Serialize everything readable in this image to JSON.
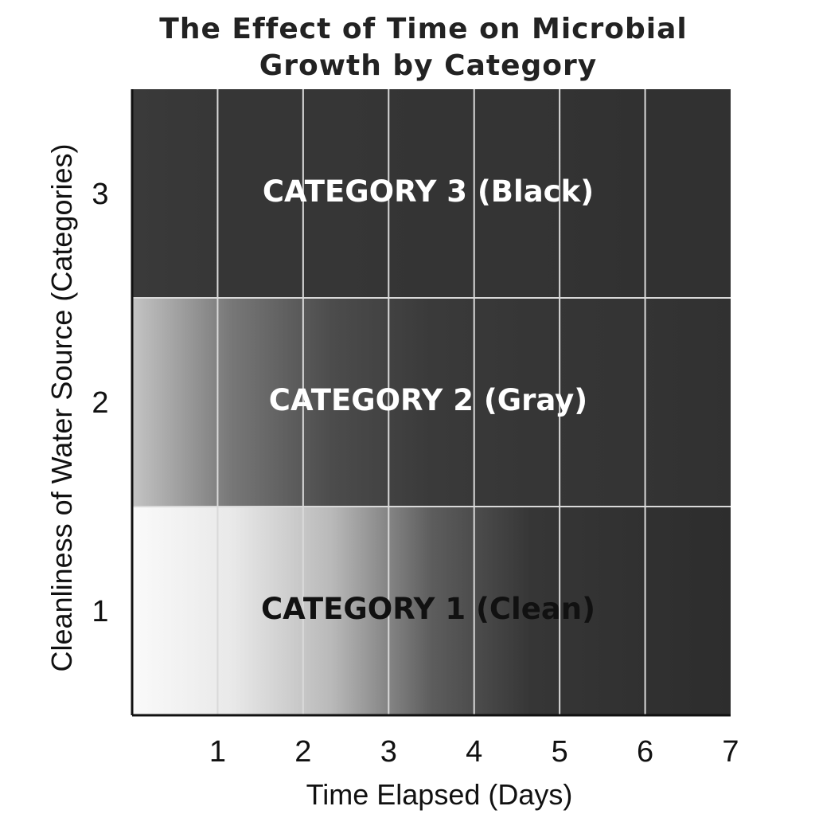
{
  "chart_data": {
    "type": "heatmap",
    "title_lines": [
      "The Effect of Time on Microbial",
      "Growth by Category"
    ],
    "xlabel": "Time Elapsed (Days)",
    "ylabel": "Cleanliness of Water Source (Categories)",
    "x_ticks": [
      "1",
      "2",
      "3",
      "4",
      "5",
      "6",
      "7"
    ],
    "y_ticks": [
      "1",
      "2",
      "3"
    ],
    "xlim": [
      0,
      7
    ],
    "ylim": [
      0.5,
      3.5
    ],
    "grid": true,
    "categories": [
      {
        "y": 1,
        "label": "CATEGORY 1 (Clean)",
        "label_color": "#111111",
        "darkness_by_day": [
          0.0,
          0.08,
          0.3,
          0.72,
          0.9,
          0.92,
          0.94
        ]
      },
      {
        "y": 2,
        "label": "CATEGORY 2 (Gray)",
        "label_color": "#ffffff",
        "darkness_by_day": [
          0.25,
          0.6,
          0.8,
          0.88,
          0.9,
          0.91,
          0.92
        ]
      },
      {
        "y": 3,
        "label": "CATEGORY 3 (Black)",
        "label_color": "#ffffff",
        "darkness_by_day": [
          0.88,
          0.9,
          0.9,
          0.91,
          0.91,
          0.92,
          0.92
        ]
      }
    ]
  }
}
